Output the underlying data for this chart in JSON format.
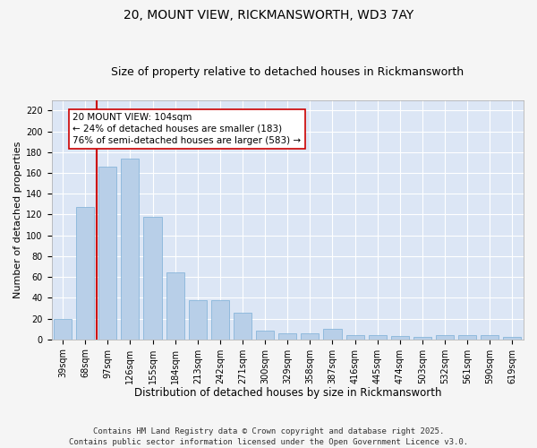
{
  "title1": "20, MOUNT VIEW, RICKMANSWORTH, WD3 7AY",
  "title2": "Size of property relative to detached houses in Rickmansworth",
  "xlabel": "Distribution of detached houses by size in Rickmansworth",
  "ylabel": "Number of detached properties",
  "categories": [
    "39sqm",
    "68sqm",
    "97sqm",
    "126sqm",
    "155sqm",
    "184sqm",
    "213sqm",
    "242sqm",
    "271sqm",
    "300sqm",
    "329sqm",
    "358sqm",
    "387sqm",
    "416sqm",
    "445sqm",
    "474sqm",
    "503sqm",
    "532sqm",
    "561sqm",
    "590sqm",
    "619sqm"
  ],
  "values": [
    20,
    127,
    166,
    174,
    118,
    64,
    38,
    38,
    26,
    8,
    6,
    6,
    10,
    4,
    4,
    3,
    2,
    4,
    4,
    4,
    2
  ],
  "bar_color": "#b8cfe8",
  "bar_edge_color": "#7aaed6",
  "vline_x": 1.5,
  "vline_color": "#cc0000",
  "annotation_text": "20 MOUNT VIEW: 104sqm\n← 24% of detached houses are smaller (183)\n76% of semi-detached houses are larger (583) →",
  "ylim": [
    0,
    230
  ],
  "yticks": [
    0,
    20,
    40,
    60,
    80,
    100,
    120,
    140,
    160,
    180,
    200,
    220
  ],
  "bg_color": "#dce6f5",
  "grid_color": "#ffffff",
  "fig_bg_color": "#f5f5f5",
  "footer": "Contains HM Land Registry data © Crown copyright and database right 2025.\nContains public sector information licensed under the Open Government Licence v3.0.",
  "title1_fontsize": 10,
  "title2_fontsize": 9,
  "xlabel_fontsize": 8.5,
  "ylabel_fontsize": 8,
  "tick_fontsize": 7,
  "annotation_fontsize": 7.5,
  "footer_fontsize": 6.5
}
